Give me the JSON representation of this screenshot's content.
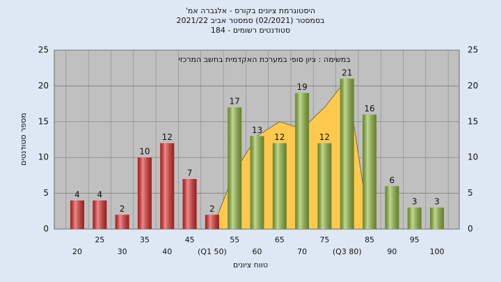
{
  "chart_data": {
    "type": "bar",
    "title": [
      "'היסטוגרמת ציונים בקורס - אלגברה אמ",
      "בסמסטר  (02/2021)  סמסטר אביב 2021/22",
      "סטודנטים רשומים - 184"
    ],
    "annotation": "במשימה : ציון סופי במערכת האקדמית בחשב המרכזי",
    "x_label": "טווח ציונים",
    "y_label": "מספר סטודנטים",
    "categories": [
      "20",
      "25",
      "30",
      "35",
      "40",
      "45",
      "(Q1 50)",
      "55",
      "60",
      "65",
      "70",
      "75",
      "(Q3 80)",
      "85",
      "90",
      "95",
      "100"
    ],
    "values": [
      4,
      4,
      2,
      10,
      12,
      7,
      2,
      17,
      13,
      12,
      19,
      12,
      21,
      16,
      6,
      3,
      3
    ],
    "bar_colors": [
      "#e02a2a",
      "#e02a2a",
      "#e02a2a",
      "#e02a2a",
      "#e02a2a",
      "#e02a2a",
      "#e02a2a",
      "#8fb83a",
      "#8fb83a",
      "#8fb83a",
      "#8fb83a",
      "#8fb83a",
      "#8fb83a",
      "#8fb83a",
      "#8fb83a",
      "#8fb83a",
      "#8fb83a"
    ],
    "area": {
      "color": "#ffc94d",
      "values": [
        null,
        null,
        null,
        null,
        null,
        null,
        0,
        8,
        13,
        15,
        14,
        17,
        21,
        0,
        null,
        null,
        null
      ]
    },
    "ylim": [
      0,
      25
    ],
    "yticks": [
      0,
      5,
      10,
      15,
      20,
      25
    ],
    "grid": true
  }
}
